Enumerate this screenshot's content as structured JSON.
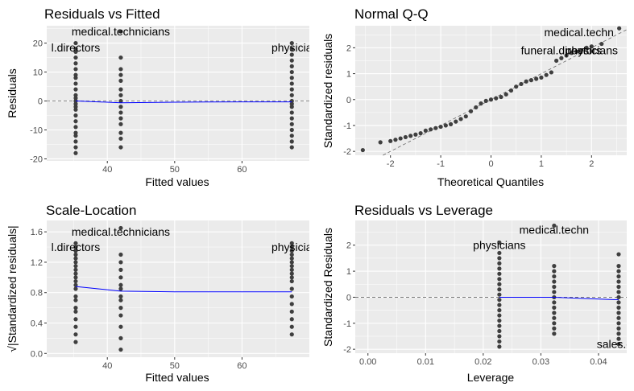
{
  "chart_data": [
    {
      "type": "scatter",
      "title": "Residuals vs Fitted",
      "xlabel": "Fitted values",
      "ylabel": "Residuals",
      "xlim": [
        31,
        70
      ],
      "ylim": [
        -20.7,
        26
      ],
      "xticks": [
        40,
        50,
        60
      ],
      "yticks": [
        -20,
        -10,
        0,
        10,
        20
      ],
      "ref_line": {
        "y": 0,
        "style": "dashed"
      },
      "annotations": [
        {
          "label": "medical.technicians",
          "x": 42,
          "y": 24
        },
        {
          "label": "l.directors",
          "x": 35.3,
          "y": 18.5
        },
        {
          "label": "physicia",
          "x": 67.4,
          "y": 18.5
        }
      ],
      "series": [
        {
          "type": "points",
          "groups": [
            {
              "x": 35.3,
              "ys": [
                -18,
                -16,
                -14,
                -12,
                -11,
                -9,
                -7,
                -5,
                -3,
                -2,
                -1,
                0,
                1,
                2,
                4,
                6,
                8,
                9,
                11,
                13,
                15,
                17,
                18,
                20
              ]
            },
            {
              "x": 42.0,
              "ys": [
                -16,
                -13,
                -11,
                -8,
                -6,
                -4,
                -2,
                0,
                2,
                4,
                7,
                9,
                11,
                15,
                24
              ]
            },
            {
              "x": 67.4,
              "ys": [
                -16,
                -14,
                -12,
                -10,
                -8,
                -6,
                -4,
                -2,
                -1,
                0,
                2,
                4,
                6,
                8,
                10,
                12,
                14,
                16,
                18,
                20
              ]
            }
          ]
        },
        {
          "type": "line",
          "color": "#0000ff",
          "x": [
            35.3,
            42.0,
            50,
            60,
            67.4
          ],
          "y": [
            0,
            -0.6,
            -0.4,
            -0.3,
            -0.3
          ]
        }
      ]
    },
    {
      "type": "scatter",
      "title": "Normal Q-Q",
      "xlabel": "Theoretical Quantiles",
      "ylabel": "Standardized residuals",
      "xlim": [
        -2.7,
        2.7
      ],
      "ylim": [
        -2.15,
        2.85
      ],
      "xticks": [
        -2,
        -1,
        0,
        1,
        2
      ],
      "yticks": [
        -2,
        -1,
        0,
        1,
        2
      ],
      "ref_line": {
        "slope": 1,
        "intercept": 0,
        "style": "dashed"
      },
      "annotations": [
        {
          "label": "medical.techn",
          "x": 1.75,
          "y": 2.6
        },
        {
          "label": "funeral.directors",
          "x": 1.4,
          "y": 1.9
        },
        {
          "label": "physicians",
          "x": 2.0,
          "y": 1.9
        }
      ],
      "series": [
        {
          "type": "qq",
          "x": [
            -2.55,
            -2.2,
            -2.0,
            -1.9,
            -1.8,
            -1.7,
            -1.6,
            -1.5,
            -1.4,
            -1.3,
            -1.2,
            -1.1,
            -1.0,
            -0.9,
            -0.8,
            -0.7,
            -0.6,
            -0.5,
            -0.4,
            -0.3,
            -0.2,
            -0.1,
            0.0,
            0.1,
            0.2,
            0.3,
            0.4,
            0.5,
            0.6,
            0.7,
            0.8,
            0.9,
            1.0,
            1.1,
            1.2,
            1.3,
            1.4,
            1.5,
            1.6,
            1.7,
            1.8,
            1.9,
            2.0,
            2.2,
            2.55
          ],
          "y": [
            -1.95,
            -1.65,
            -1.6,
            -1.55,
            -1.5,
            -1.45,
            -1.4,
            -1.35,
            -1.3,
            -1.2,
            -1.15,
            -1.1,
            -1.05,
            -1.0,
            -0.95,
            -0.85,
            -0.75,
            -0.65,
            -0.45,
            -0.3,
            -0.15,
            -0.05,
            0.0,
            0.05,
            0.1,
            0.2,
            0.35,
            0.5,
            0.6,
            0.7,
            0.75,
            0.8,
            0.85,
            0.95,
            1.05,
            1.5,
            1.6,
            1.7,
            1.8,
            1.85,
            1.9,
            2.0,
            2.05,
            2.15,
            2.75
          ]
        }
      ]
    },
    {
      "type": "scatter",
      "title": "Scale-Location",
      "xlabel": "Fitted values",
      "ylabel": "√|Standardized residuals|",
      "xlim": [
        31,
        70
      ],
      "ylim": [
        -0.05,
        1.75
      ],
      "xticks": [
        40,
        50,
        60
      ],
      "yticks": [
        0.0,
        0.4,
        0.8,
        1.2,
        1.6
      ],
      "annotations": [
        {
          "label": "medical.technicians",
          "x": 42,
          "y": 1.6
        },
        {
          "label": "l.directors",
          "x": 35.3,
          "y": 1.4
        },
        {
          "label": "physicia",
          "x": 67.4,
          "y": 1.4
        }
      ],
      "series": [
        {
          "type": "points",
          "groups": [
            {
              "x": 35.3,
              "ys": [
                0.15,
                0.25,
                0.35,
                0.45,
                0.55,
                0.6,
                0.7,
                0.75,
                0.85,
                0.9,
                0.95,
                1.0,
                1.05,
                1.1,
                1.15,
                1.2,
                1.25,
                1.3,
                1.35,
                1.4,
                1.45
              ]
            },
            {
              "x": 42.0,
              "ys": [
                0.05,
                0.2,
                0.35,
                0.5,
                0.6,
                0.7,
                0.75,
                0.85,
                0.9,
                1.0,
                1.1,
                1.2,
                1.3,
                1.65
              ]
            },
            {
              "x": 67.4,
              "ys": [
                0.25,
                0.35,
                0.45,
                0.55,
                0.65,
                0.75,
                0.85,
                0.95,
                1.0,
                1.05,
                1.1,
                1.15,
                1.2,
                1.25,
                1.3,
                1.35,
                1.4,
                1.45
              ]
            }
          ]
        },
        {
          "type": "line",
          "color": "#0000ff",
          "x": [
            35.3,
            42.0,
            50,
            60,
            67.4
          ],
          "y": [
            0.88,
            0.82,
            0.81,
            0.81,
            0.81
          ]
        }
      ]
    },
    {
      "type": "scatter",
      "title": "Residuals vs Leverage",
      "xlabel": "Leverage",
      "ylabel": "Standardized Residuals",
      "xlim": [
        -0.0022,
        0.0449
      ],
      "ylim": [
        -2.15,
        2.95
      ],
      "xticks": [
        0.0,
        0.01,
        0.02,
        0.03,
        0.04
      ],
      "yticks": [
        -2,
        -1,
        0,
        1,
        2
      ],
      "ref_line": {
        "y": 0,
        "style": "dashed"
      },
      "annotations": [
        {
          "label": "medical.techn",
          "x": 0.0323,
          "y": 2.6
        },
        {
          "label": "physicians",
          "x": 0.0228,
          "y": 2.0
        },
        {
          "label": "sales.cle",
          "x": 0.0435,
          "y": -1.8
        }
      ],
      "series": [
        {
          "type": "points",
          "groups": [
            {
              "x": 0.0228,
              "ys": [
                -1.9,
                -1.7,
                -1.5,
                -1.3,
                -1.1,
                -0.9,
                -0.7,
                -0.5,
                -0.3,
                -0.1,
                0.1,
                0.3,
                0.5,
                0.7,
                0.9,
                1.1,
                1.3,
                1.5,
                1.7,
                2.1
              ]
            },
            {
              "x": 0.0323,
              "ys": [
                -1.4,
                -1.2,
                -1.0,
                -0.8,
                -0.6,
                -0.4,
                -0.2,
                0.0,
                0.2,
                0.4,
                0.6,
                0.8,
                1.0,
                1.2,
                2.75
              ]
            },
            {
              "x": 0.0435,
              "ys": [
                -1.8,
                -1.6,
                -1.4,
                -1.2,
                -1.0,
                -0.8,
                -0.6,
                -0.4,
                -0.2,
                0.0,
                0.2,
                0.4,
                0.6,
                0.8,
                1.0,
                1.2,
                1.65
              ]
            }
          ]
        },
        {
          "type": "line",
          "color": "#0000ff",
          "x": [
            0.0228,
            0.0323,
            0.0435
          ],
          "y": [
            0.0,
            0.0,
            -0.1
          ]
        }
      ]
    }
  ]
}
